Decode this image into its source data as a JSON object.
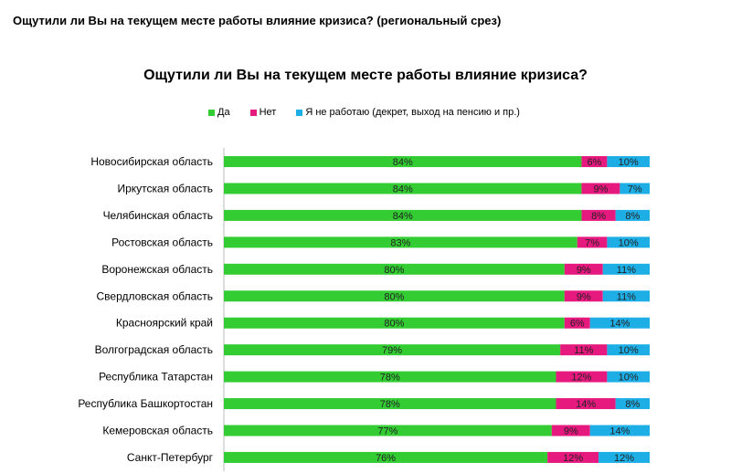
{
  "page_header": "Ощутили ли Вы на текущем месте работы влияние кризиса? (региональный срез)",
  "chart_data": {
    "type": "bar",
    "orientation": "horizontal",
    "stacked": "percent",
    "title": "Ощутили ли Вы на текущем месте работы влияние кризиса?",
    "legend_position": "top",
    "categories": [
      "Новосибирская область",
      "Иркутская область",
      "Челябинская область",
      "Ростовская область",
      "Воронежская область",
      "Свердловская область",
      "Красноярский край",
      "Волгоградская область",
      "Республика Татарстан",
      "Республика Башкортостан",
      "Кемеровская область",
      "Санкт-Петербург"
    ],
    "series": [
      {
        "name": "Да",
        "color": "#33cc33",
        "values": [
          84,
          84,
          84,
          83,
          80,
          80,
          80,
          79,
          78,
          78,
          77,
          76
        ],
        "labels": [
          "84%",
          "84%",
          "84%",
          "83%",
          "80%",
          "80%",
          "80%",
          "79%",
          "78%",
          "78%",
          "77%",
          "76%"
        ]
      },
      {
        "name": "Нет",
        "color": "#e6197f",
        "values": [
          6,
          9,
          8,
          7,
          9,
          9,
          6,
          11,
          12,
          14,
          9,
          12
        ],
        "labels": [
          "6%",
          "9%",
          "8%",
          "7%",
          "9%",
          "9%",
          "6%",
          "11%",
          "12%",
          "14%",
          "9%",
          "12%"
        ]
      },
      {
        "name": "Я не работаю (декрет, выход на пенсию и пр.)",
        "color": "#1eaee6",
        "values": [
          10,
          7,
          8,
          10,
          11,
          11,
          14,
          10,
          10,
          8,
          14,
          12
        ],
        "labels": [
          "10%",
          "7%",
          "8%",
          "10%",
          "11%",
          "11%",
          "14%",
          "10%",
          "10%",
          "8%",
          "14%",
          "12%"
        ]
      }
    ],
    "xlim": [
      0,
      100
    ]
  }
}
